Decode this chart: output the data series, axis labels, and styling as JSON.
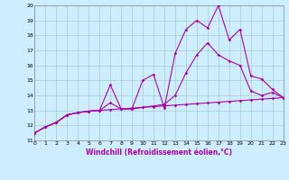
{
  "xlabel": "Windchill (Refroidissement éolien,°C)",
  "xlim": [
    0,
    23
  ],
  "ylim": [
    11,
    20
  ],
  "xticks": [
    0,
    1,
    2,
    3,
    4,
    5,
    6,
    7,
    8,
    9,
    10,
    11,
    12,
    13,
    14,
    15,
    16,
    17,
    18,
    19,
    20,
    21,
    22,
    23
  ],
  "yticks": [
    11,
    12,
    13,
    14,
    15,
    16,
    17,
    18,
    19,
    20
  ],
  "bg_color": "#cceeff",
  "grid_color": "#aacccc",
  "line_color": "#aa00aa",
  "line1_x": [
    0,
    1,
    2,
    3,
    4,
    5,
    6,
    7,
    8,
    9,
    10,
    11,
    12,
    13,
    14,
    15,
    16,
    17,
    18,
    19,
    20,
    21,
    22,
    23
  ],
  "line1_y": [
    11.5,
    11.9,
    12.2,
    12.7,
    12.85,
    12.95,
    13.0,
    13.05,
    13.1,
    13.15,
    13.2,
    13.25,
    13.3,
    13.35,
    13.4,
    13.45,
    13.5,
    13.55,
    13.6,
    13.65,
    13.7,
    13.75,
    13.8,
    13.85
  ],
  "line2_x": [
    0,
    1,
    2,
    3,
    4,
    5,
    6,
    7,
    8,
    9,
    10,
    11,
    12,
    13,
    14,
    15,
    16,
    17,
    18,
    19,
    20,
    21,
    22,
    23
  ],
  "line2_y": [
    11.5,
    11.9,
    12.2,
    12.7,
    12.85,
    12.95,
    13.0,
    13.5,
    13.1,
    13.1,
    13.2,
    13.3,
    13.4,
    14.0,
    15.5,
    16.7,
    17.5,
    16.7,
    16.3,
    16.0,
    14.3,
    14.0,
    14.2,
    13.85
  ],
  "line3_x": [
    0,
    1,
    2,
    3,
    4,
    5,
    6,
    7,
    8,
    9,
    10,
    11,
    12,
    13,
    14,
    15,
    16,
    17,
    18,
    19,
    20,
    21,
    22,
    23
  ],
  "line3_y": [
    11.5,
    11.9,
    12.2,
    12.7,
    12.85,
    12.95,
    13.0,
    14.7,
    13.1,
    13.1,
    15.0,
    15.4,
    13.15,
    16.8,
    18.4,
    19.0,
    18.5,
    20.0,
    17.7,
    18.4,
    15.3,
    15.1,
    14.4,
    13.85
  ]
}
